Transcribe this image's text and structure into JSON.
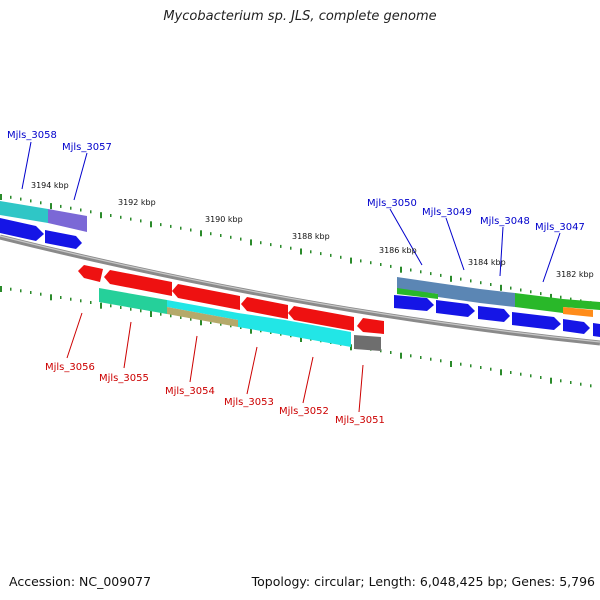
{
  "title": "Mycobacterium sp. JLS, complete genome",
  "footer": {
    "accession": "Accession: NC_009077",
    "topology": "Topology: circular; Length: 6,048,425 bp; Genes: 5,796"
  },
  "colors": {
    "backbone": "#7f7f7f",
    "tick": "#2a8a2a",
    "label_forward": "#0000cc",
    "label_reverse": "#cc0000",
    "kbp_text": "#111111"
  },
  "kbp_labels": [
    "3194 kbp",
    "3192 kbp",
    "3190 kbp",
    "3188 kbp",
    "3186 kbp",
    "3184 kbp",
    "3182 kbp"
  ],
  "genes_forward": [
    {
      "label": "Mjls_3058"
    },
    {
      "label": "Mjls_3057"
    },
    {
      "label": "Mjls_3050"
    },
    {
      "label": "Mjls_3049"
    },
    {
      "label": "Mjls_3048"
    },
    {
      "label": "Mjls_3047"
    }
  ],
  "genes_reverse": [
    {
      "label": "Mjls_3056"
    },
    {
      "label": "Mjls_3055"
    },
    {
      "label": "Mjls_3054"
    },
    {
      "label": "Mjls_3053"
    },
    {
      "label": "Mjls_3052"
    },
    {
      "label": "Mjls_3051"
    }
  ]
}
